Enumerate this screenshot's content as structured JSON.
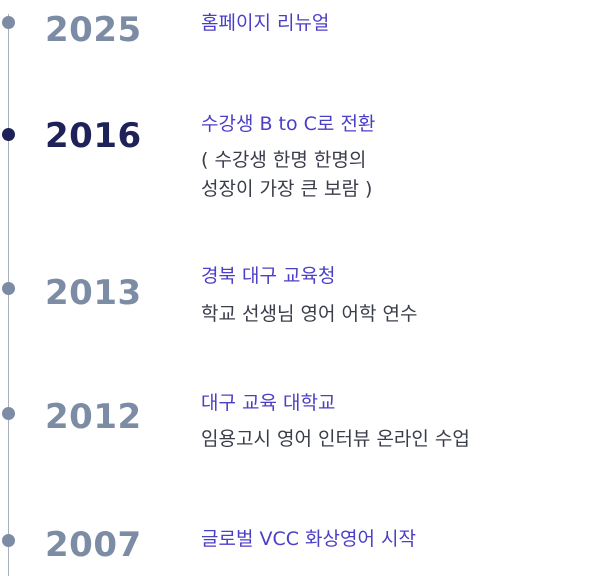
{
  "timeline": {
    "entries": [
      {
        "year": "2025",
        "title": "홈페이지 리뉴얼",
        "active": false
      },
      {
        "year": "2016",
        "title": "수강생 B to C로 전환",
        "desc_line1": "( 수강생 한명 한명의",
        "desc_line2": "성장이 가장 큰 보람 )",
        "active": true
      },
      {
        "year": "2013",
        "title": "경북 대구 교육청",
        "desc_line1": "학교 선생님 영어 어학 연수",
        "active": false
      },
      {
        "year": "2012",
        "title": "대구 교육 대학교",
        "desc_line1": "임용고시 영어 인터뷰 온라인 수업",
        "active": false
      },
      {
        "year": "2007",
        "title": "글로벌 VCC 화상영어 시작",
        "active": false
      }
    ]
  },
  "colors": {
    "active_year": "#1f2258",
    "inactive_year": "#7d8ca5",
    "title": "#4b3fc8",
    "description": "#3a3d4a",
    "track": "#a8afbd"
  }
}
